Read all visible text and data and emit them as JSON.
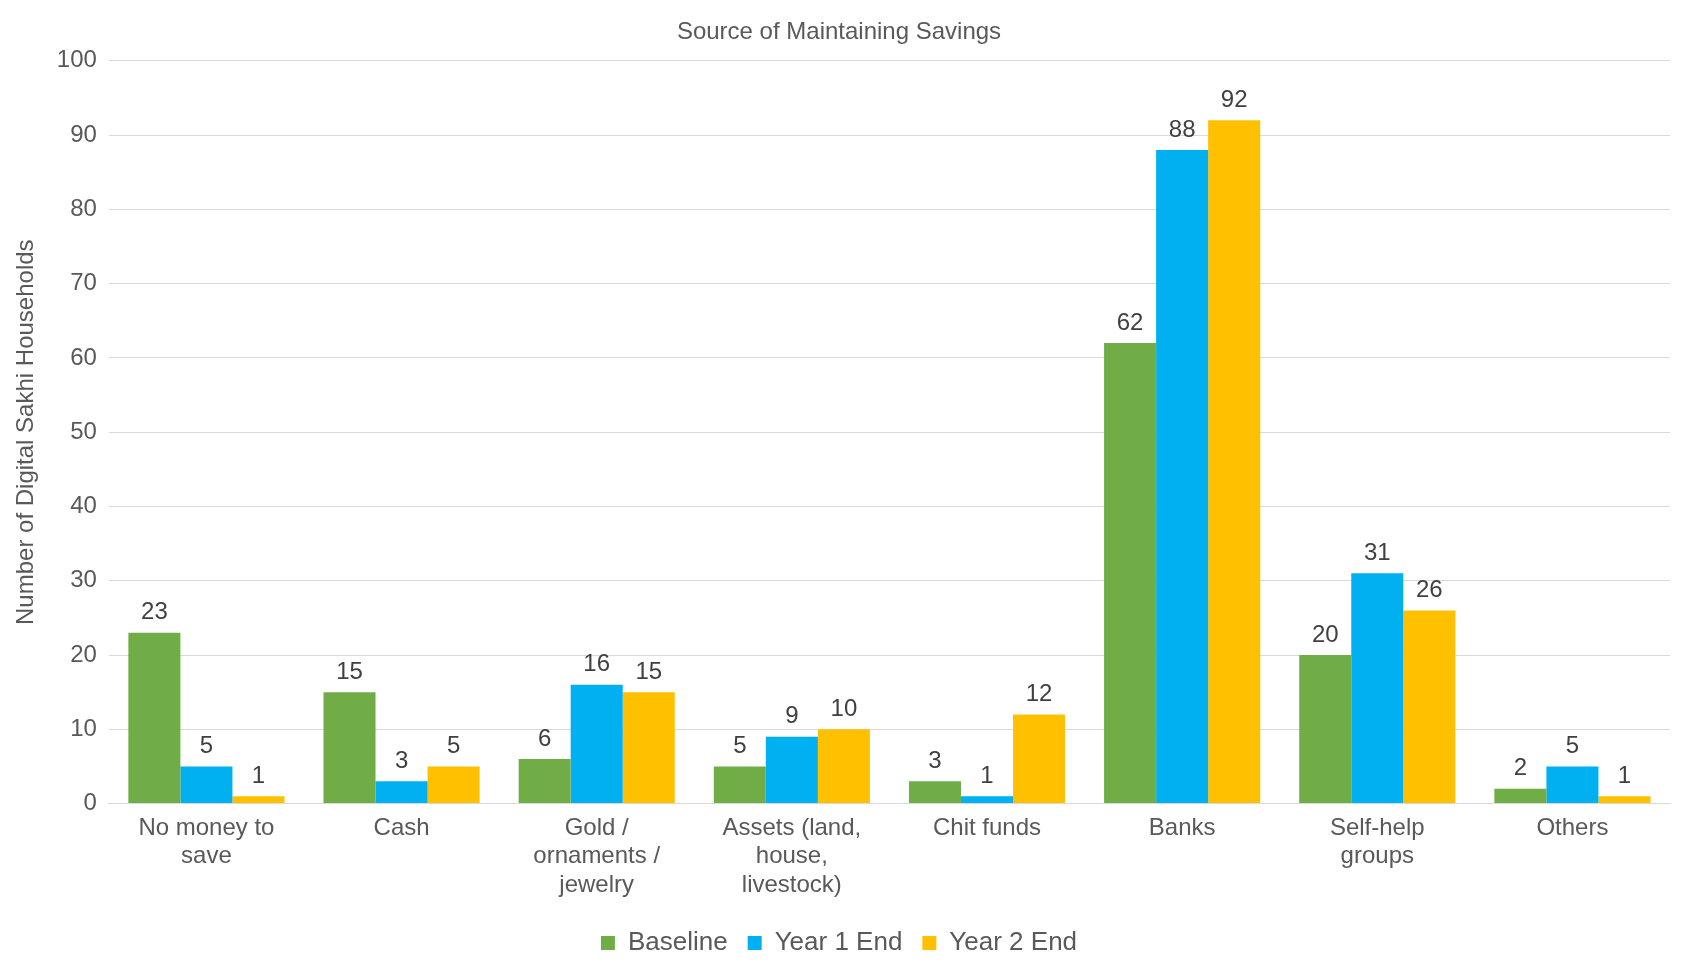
{
  "chart_data": {
    "type": "bar",
    "title": "Source of Maintaining Savings",
    "ylabel": "Number of Digital Sakhi Households",
    "categories": [
      "No money to save",
      "Cash",
      "Gold / ornaments / jewelry",
      "Assets (land, house, livestock)",
      "Chit funds",
      "Banks",
      "Self-help groups",
      "Others"
    ],
    "series": [
      {
        "name": "Baseline",
        "color": "#70ad47",
        "values": [
          23,
          15,
          6,
          5,
          3,
          62,
          20,
          2
        ]
      },
      {
        "name": "Year 1 End",
        "color": "#00b0f0",
        "values": [
          5,
          3,
          16,
          9,
          1,
          88,
          31,
          5
        ]
      },
      {
        "name": "Year 2 End",
        "color": "#ffc000",
        "values": [
          1,
          5,
          15,
          10,
          12,
          92,
          26,
          1
        ]
      }
    ],
    "ylim": [
      0,
      100
    ],
    "yticks": [
      0,
      10,
      20,
      30,
      40,
      50,
      60,
      70,
      80,
      90,
      100
    ],
    "grid": "y",
    "legend": "bottom",
    "data_labels": true
  }
}
